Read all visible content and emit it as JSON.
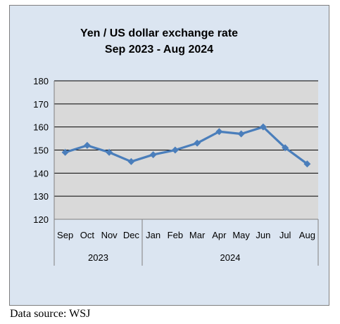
{
  "chart_data": {
    "type": "line",
    "title": "Yen / US dollar exchange rate",
    "subtitle": "Sep 2023 - Aug 2024",
    "xlabel": "",
    "ylabel": "",
    "categories": [
      "Sep",
      "Oct",
      "Nov",
      "Dec",
      "Jan",
      "Feb",
      "Mar",
      "Apr",
      "May",
      "Jun",
      "Jul",
      "Aug"
    ],
    "year_groups": [
      {
        "label": "2023",
        "count": 4
      },
      {
        "label": "2024",
        "count": 8
      }
    ],
    "series": [
      {
        "values": [
          149,
          152,
          149,
          145,
          148,
          150,
          153,
          158,
          157,
          160,
          151,
          144
        ]
      }
    ],
    "yticks": [
      "120",
      "130",
      "140",
      "150",
      "160",
      "170",
      "180"
    ],
    "ylim": [
      120,
      180
    ],
    "grid": true,
    "legend": "none",
    "colors": {
      "line": "#4a7ebb",
      "plot_background": "#d9d9d9",
      "chart_background": "#dbe5f1",
      "gridline": "#000000"
    }
  },
  "footer": {
    "source": "Data source: WSJ"
  }
}
